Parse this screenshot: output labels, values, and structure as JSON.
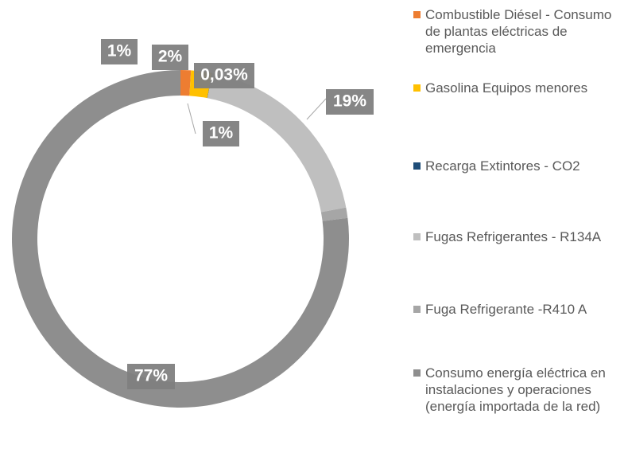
{
  "chart_data": {
    "type": "donut",
    "categories": [
      "Combustible Diésel - Consumo de plantas eléctricas de emergencia",
      "Gasolina Equipos menores",
      "Recarga Extintores - CO2",
      "Fugas Refrigerantes - R134A",
      "Fuga Refrigerante -R410 A",
      "Consumo energía eléctrica en instalaciones y operaciones (energía importada de la red)"
    ],
    "values": [
      1,
      2,
      0.03,
      19,
      1,
      77
    ],
    "value_labels": [
      "1%",
      "2%",
      "0,03%",
      "19%",
      "1%",
      "77%"
    ],
    "colors": [
      "#ED7D31",
      "#FFC000",
      "#1F4E79",
      "#BFBFBF",
      "#A6A6A6",
      "#8E8E8E"
    ]
  }
}
